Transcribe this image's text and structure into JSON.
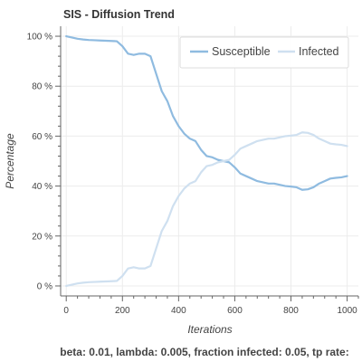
{
  "chart_data": {
    "type": "line",
    "title": "SIS - Diffusion Trend",
    "xlabel": "Iterations",
    "ylabel": "Percentage",
    "xlim": [
      -20,
      1040
    ],
    "ylim": [
      -0.04,
      1.04
    ],
    "x_ticks": [
      0,
      200,
      400,
      600,
      800,
      1000
    ],
    "x_tick_labels": [
      "0",
      "200",
      "400",
      "600",
      "800",
      "1000"
    ],
    "y_ticks": [
      0,
      0.2,
      0.4,
      0.6,
      0.8,
      1.0
    ],
    "y_tick_labels": [
      "0 %",
      "20 %",
      "40 %",
      "60 %",
      "80 %",
      "100 %"
    ],
    "grid": true,
    "legend_position": "top-right",
    "caption": "beta: 0.01, lambda: 0.005, fraction infected: 0.05, tp rate:",
    "colors": {
      "susceptible": "#8fbbe0",
      "infected": "#cfe0f0",
      "grid": "#ececec",
      "axis": "#666666"
    },
    "series": [
      {
        "name": "Susceptible",
        "x": [
          0,
          20,
          40,
          60,
          80,
          100,
          120,
          140,
          160,
          180,
          200,
          220,
          240,
          260,
          280,
          300,
          320,
          340,
          360,
          380,
          400,
          420,
          440,
          460,
          480,
          500,
          520,
          540,
          560,
          580,
          600,
          620,
          640,
          660,
          680,
          700,
          720,
          740,
          760,
          780,
          800,
          820,
          840,
          860,
          880,
          900,
          920,
          940,
          960,
          980,
          1000
        ],
        "y": [
          1.0,
          0.995,
          0.99,
          0.987,
          0.985,
          0.984,
          0.983,
          0.982,
          0.981,
          0.98,
          0.96,
          0.93,
          0.925,
          0.93,
          0.93,
          0.92,
          0.85,
          0.78,
          0.74,
          0.68,
          0.64,
          0.61,
          0.59,
          0.58,
          0.545,
          0.52,
          0.515,
          0.505,
          0.5,
          0.495,
          0.475,
          0.45,
          0.44,
          0.43,
          0.42,
          0.415,
          0.41,
          0.41,
          0.405,
          0.4,
          0.398,
          0.395,
          0.385,
          0.387,
          0.395,
          0.41,
          0.42,
          0.43,
          0.433,
          0.435,
          0.44
        ]
      },
      {
        "name": "Infected",
        "x": [
          0,
          20,
          40,
          60,
          80,
          100,
          120,
          140,
          160,
          180,
          200,
          220,
          240,
          260,
          280,
          300,
          320,
          340,
          360,
          380,
          400,
          420,
          440,
          460,
          480,
          500,
          520,
          540,
          560,
          580,
          600,
          620,
          640,
          660,
          680,
          700,
          720,
          740,
          760,
          780,
          800,
          820,
          840,
          860,
          880,
          900,
          920,
          940,
          960,
          980,
          1000
        ],
        "y": [
          0.0,
          0.005,
          0.01,
          0.013,
          0.015,
          0.016,
          0.017,
          0.018,
          0.019,
          0.02,
          0.04,
          0.07,
          0.075,
          0.07,
          0.07,
          0.08,
          0.15,
          0.22,
          0.26,
          0.32,
          0.36,
          0.39,
          0.41,
          0.42,
          0.455,
          0.48,
          0.485,
          0.495,
          0.5,
          0.505,
          0.525,
          0.55,
          0.56,
          0.57,
          0.58,
          0.585,
          0.59,
          0.59,
          0.595,
          0.6,
          0.602,
          0.605,
          0.615,
          0.613,
          0.605,
          0.59,
          0.58,
          0.57,
          0.567,
          0.565,
          0.56
        ]
      }
    ]
  }
}
